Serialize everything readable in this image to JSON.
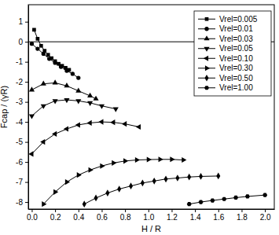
{
  "chart_data": {
    "type": "line",
    "x_label": "H / R",
    "y_label": "Fcap / (γR)",
    "xlim": [
      -0.03,
      2.08
    ],
    "ylim": [
      -8.35,
      1.85
    ],
    "xticks": [
      {
        "value": 0,
        "label": "0.0"
      },
      0.2,
      0.4,
      0.6,
      0.8,
      {
        "value": 1,
        "label": "1.0"
      },
      1.2,
      1.4,
      1.6,
      1.8,
      {
        "value": 2,
        "label": "2.0"
      }
    ],
    "yticks": [
      1,
      0,
      -1,
      -2,
      -3,
      -4,
      -5,
      -6,
      -7,
      -8
    ],
    "hline": 0,
    "legend": "upper-right",
    "grid": false,
    "series": [
      {
        "name": "Vrel=0.005",
        "color": "#000000",
        "marker": "square",
        "x": [
          0.02,
          0.05,
          0.08,
          0.11,
          0.14,
          0.17,
          0.2,
          0.23,
          0.26,
          0.29,
          0.32
        ],
        "values": [
          0.6,
          0.15,
          -0.2,
          -0.45,
          -0.65,
          -0.82,
          -0.97,
          -1.1,
          -1.2,
          -1.3,
          -1.4
        ]
      },
      {
        "name": "Vrel=0.01",
        "color": "#000000",
        "marker": "circle",
        "x": [
          0,
          0.05,
          0.1,
          0.15,
          0.2,
          0.25,
          0.3,
          0.35,
          0.4
        ],
        "values": [
          -0.1,
          -0.35,
          -0.6,
          -0.85,
          -1.05,
          -1.25,
          -1.45,
          -1.6,
          -1.8
        ]
      },
      {
        "name": "Vrel=0.03",
        "color": "#000000",
        "marker": "triangle-up",
        "x": [
          0,
          0.1,
          0.2,
          0.3,
          0.4,
          0.5,
          0.55
        ],
        "values": [
          -2.4,
          -2.1,
          -2.05,
          -2.2,
          -2.45,
          -2.7,
          -2.85
        ]
      },
      {
        "name": "Vrel=0.05",
        "color": "#000000",
        "marker": "triangle-down",
        "x": [
          0,
          0.1,
          0.2,
          0.3,
          0.4,
          0.5,
          0.6,
          0.72
        ],
        "values": [
          -3.7,
          -3.2,
          -2.95,
          -2.9,
          -2.95,
          -3.05,
          -3.2,
          -3.35
        ]
      },
      {
        "name": "Vrel=0.10",
        "color": "#000000",
        "marker": "triangle-left",
        "x": [
          0,
          0.1,
          0.2,
          0.3,
          0.4,
          0.5,
          0.6,
          0.7,
          0.8,
          0.92
        ],
        "values": [
          -5.6,
          -5.0,
          -4.6,
          -4.35,
          -4.15,
          -4.05,
          -4.0,
          -4.02,
          -4.1,
          -4.25
        ]
      },
      {
        "name": "Vrel=0.30",
        "color": "#000000",
        "marker": "triangle-right",
        "x": [
          0.1,
          0.2,
          0.3,
          0.4,
          0.5,
          0.6,
          0.7,
          0.8,
          0.9,
          1.0,
          1.1,
          1.2,
          1.3
        ],
        "values": [
          -8.1,
          -7.5,
          -7.0,
          -6.65,
          -6.4,
          -6.2,
          -6.05,
          -5.95,
          -5.9,
          -5.88,
          -5.87,
          -5.87,
          -5.9
        ]
      },
      {
        "name": "Vrel=0.50",
        "color": "#000000",
        "marker": "diamond",
        "x": [
          0.45,
          0.55,
          0.65,
          0.75,
          0.85,
          0.95,
          1.05,
          1.15,
          1.25,
          1.35,
          1.45,
          1.6
        ],
        "values": [
          -8.1,
          -7.8,
          -7.55,
          -7.35,
          -7.2,
          -7.05,
          -6.95,
          -6.85,
          -6.8,
          -6.75,
          -6.72,
          -6.7
        ]
      },
      {
        "name": "Vrel=1.00",
        "color": "#000000",
        "marker": "hexagon",
        "x": [
          1.35,
          1.45,
          1.55,
          1.65,
          1.75,
          1.85,
          2.0
        ],
        "values": [
          -8.1,
          -8.0,
          -7.92,
          -7.85,
          -7.78,
          -7.72,
          -7.65
        ]
      }
    ]
  }
}
